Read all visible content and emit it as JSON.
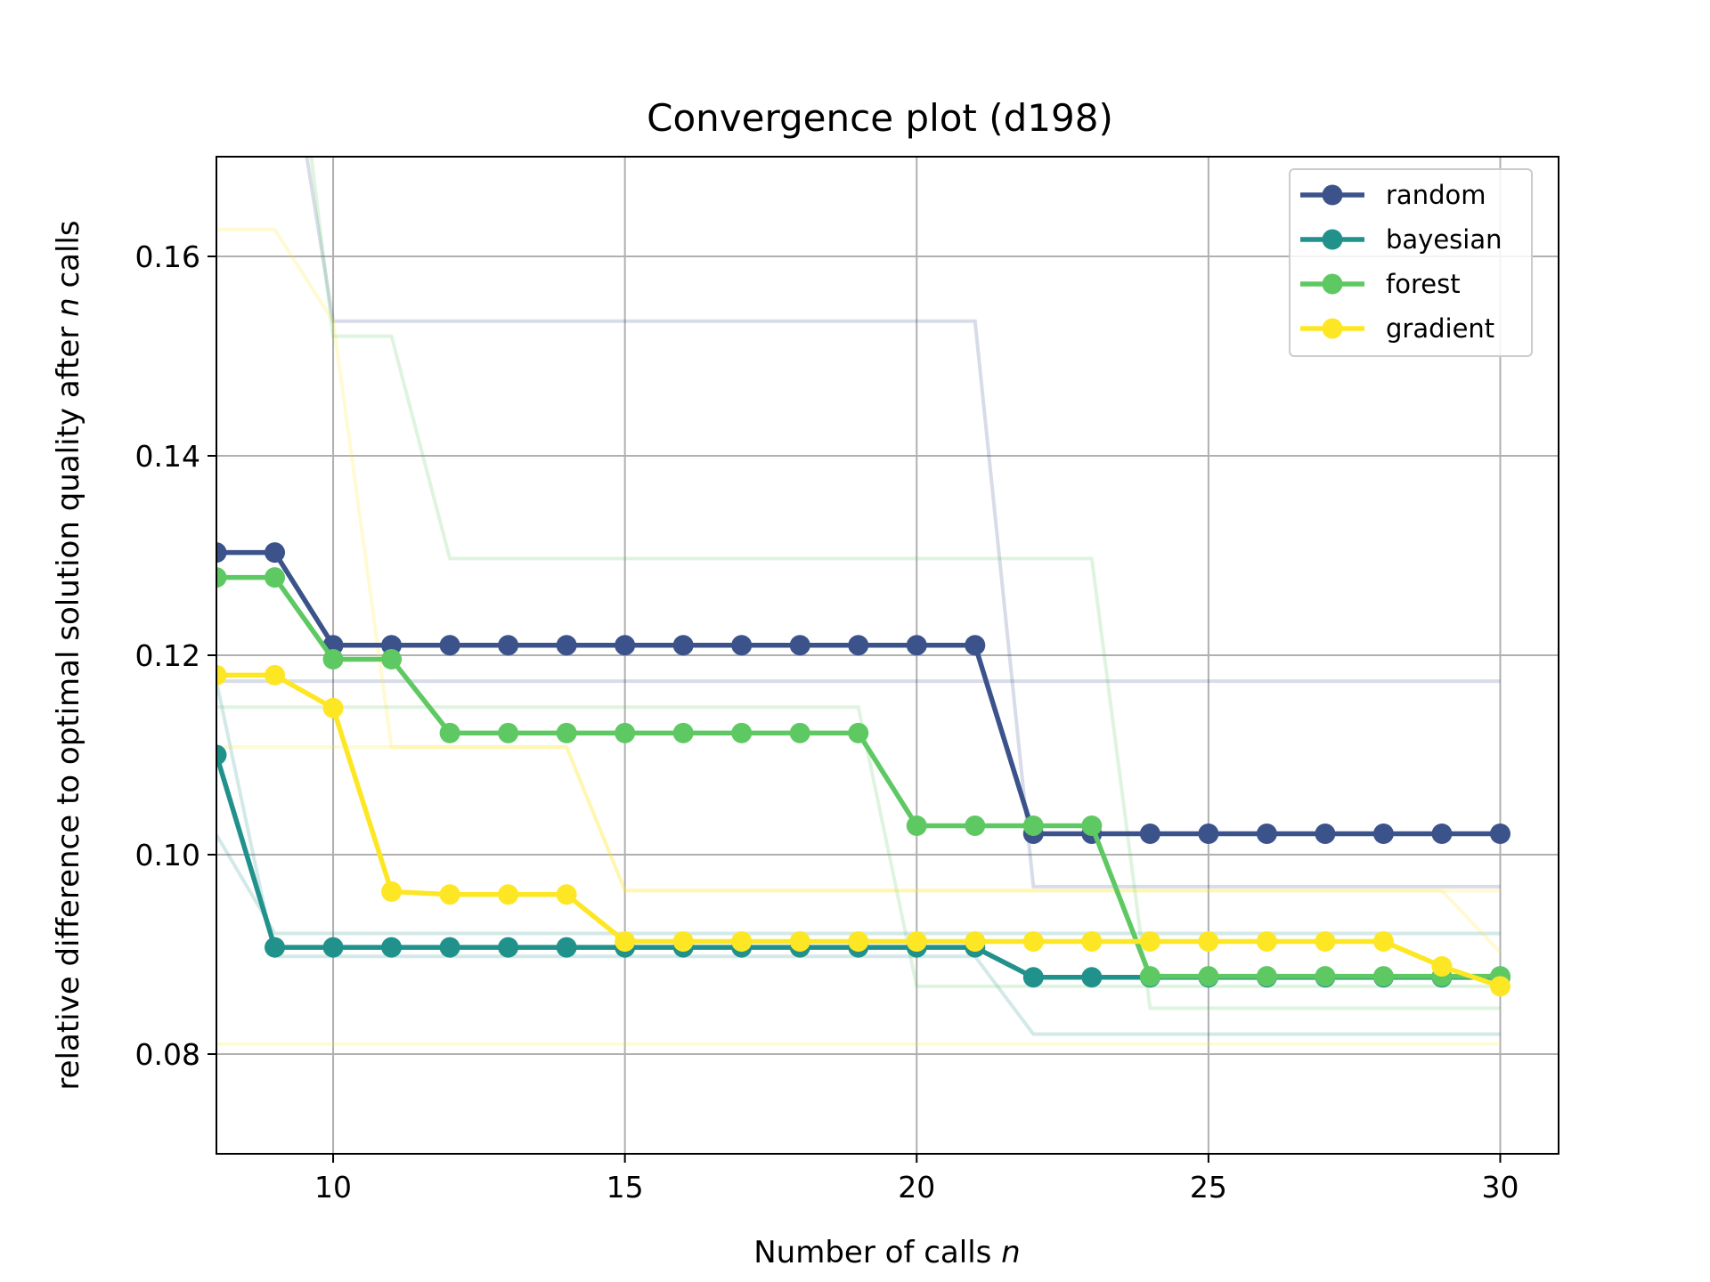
{
  "chart_data": {
    "type": "line",
    "title": "Convergence plot (d198)",
    "xlabel": "Number of calls",
    "xlabel_var": "n",
    "ylabel_prefix": "relative difference to optimal solution quality after",
    "ylabel_var": "n",
    "ylabel_suffix": "calls",
    "xlim": [
      8,
      31
    ],
    "ylim": [
      0.07,
      0.17
    ],
    "xticks": [
      10,
      15,
      20,
      25,
      30
    ],
    "xtick_labels": [
      "10",
      "15",
      "20",
      "25",
      "30"
    ],
    "yticks": [
      0.08,
      0.1,
      0.12,
      0.14,
      0.16
    ],
    "ytick_labels": [
      "0.08",
      "0.10",
      "0.12",
      "0.14",
      "0.16"
    ],
    "grid": true,
    "legend_position": "top-right",
    "x": [
      8,
      9,
      10,
      11,
      12,
      13,
      14,
      15,
      16,
      17,
      18,
      19,
      20,
      21,
      22,
      23,
      24,
      25,
      26,
      27,
      28,
      29,
      30
    ],
    "series": [
      {
        "name": "random",
        "color": "#3b528b",
        "values": [
          0.1303,
          0.1303,
          0.121,
          0.121,
          0.121,
          0.121,
          0.121,
          0.121,
          0.121,
          0.121,
          0.121,
          0.121,
          0.121,
          0.121,
          0.1021,
          0.1021,
          0.1021,
          0.1021,
          0.1021,
          0.1021,
          0.1021,
          0.1021,
          0.1021
        ],
        "runs": [
          [
            0.19,
            0.19,
            0.1535,
            0.1535,
            0.1535,
            0.1535,
            0.1535,
            0.1535,
            0.1535,
            0.1535,
            0.1535,
            0.1535,
            0.1535,
            0.1535,
            0.0968,
            0.0968,
            0.0968,
            0.0968,
            0.0968,
            0.0968,
            0.0968,
            0.0968,
            0.0968
          ],
          [
            0.1174,
            0.1174,
            0.1174,
            0.1174,
            0.1174,
            0.1174,
            0.1174,
            0.1174,
            0.1174,
            0.1174,
            0.1174,
            0.1174,
            0.1174,
            0.1174,
            0.1174,
            0.1174,
            0.1174,
            0.1174,
            0.1174,
            0.1174,
            0.1174,
            0.1174,
            0.1174
          ]
        ]
      },
      {
        "name": "bayesian",
        "color": "#21918c",
        "values": [
          0.11,
          0.0907,
          0.0907,
          0.0907,
          0.0907,
          0.0907,
          0.0907,
          0.0907,
          0.0907,
          0.0907,
          0.0907,
          0.0907,
          0.0907,
          0.0907,
          0.0877,
          0.0877,
          0.0877,
          0.0877,
          0.0877,
          0.0877,
          0.0877,
          0.0877,
          0.0877
        ],
        "runs": [
          [
            0.102,
            0.0921,
            0.0921,
            0.0921,
            0.0921,
            0.0921,
            0.0921,
            0.0921,
            0.0921,
            0.0921,
            0.0921,
            0.0921,
            0.0921,
            0.0921,
            0.0921,
            0.0921,
            0.0921,
            0.0921,
            0.0921,
            0.0921,
            0.0921,
            0.0921,
            0.0921
          ],
          [
            0.1174,
            0.0898,
            0.0898,
            0.0898,
            0.0898,
            0.0898,
            0.0898,
            0.0898,
            0.0898,
            0.0898,
            0.0898,
            0.0898,
            0.0898,
            0.0898,
            0.082,
            0.082,
            0.082,
            0.082,
            0.082,
            0.082,
            0.082,
            0.082,
            0.082
          ]
        ]
      },
      {
        "name": "forest",
        "color": "#5ec962",
        "values": [
          0.1278,
          0.1278,
          0.1196,
          0.1196,
          0.1122,
          0.1122,
          0.1122,
          0.1122,
          0.1122,
          0.1122,
          0.1122,
          0.1122,
          0.1029,
          0.1029,
          0.1029,
          0.1029,
          0.0878,
          0.0878,
          0.0878,
          0.0878,
          0.0878,
          0.0878,
          0.0878
        ],
        "runs": [
          [
            0.2,
            0.2,
            0.152,
            0.152,
            0.1297,
            0.1297,
            0.1297,
            0.1297,
            0.1297,
            0.1297,
            0.1297,
            0.1297,
            0.1297,
            0.1297,
            0.1297,
            0.1297,
            0.0846,
            0.0846,
            0.0846,
            0.0846,
            0.0846,
            0.0846,
            0.0846
          ],
          [
            0.1148,
            0.1148,
            0.1148,
            0.1148,
            0.1148,
            0.1148,
            0.1148,
            0.1148,
            0.1148,
            0.1148,
            0.1148,
            0.1148,
            0.0868,
            0.0868,
            0.0868,
            0.0868,
            0.0868,
            0.0868,
            0.0868,
            0.0868,
            0.0868,
            0.0868,
            0.0868
          ]
        ]
      },
      {
        "name": "gradient",
        "color": "#fde725",
        "values": [
          0.118,
          0.118,
          0.1147,
          0.0963,
          0.096,
          0.096,
          0.096,
          0.0913,
          0.0913,
          0.0913,
          0.0913,
          0.0913,
          0.0913,
          0.0913,
          0.0913,
          0.0913,
          0.0913,
          0.0913,
          0.0913,
          0.0913,
          0.0913,
          0.0888,
          0.0868
        ],
        "runs": [
          [
            0.1627,
            0.1627,
            0.1535,
            0.1108,
            0.1108,
            0.1108,
            0.1108,
            0.0964,
            0.0964,
            0.0964,
            0.0964,
            0.0964,
            0.0964,
            0.0964,
            0.0964,
            0.0964,
            0.0964,
            0.0964,
            0.0964,
            0.0964,
            0.0964,
            0.0964,
            0.0902
          ],
          [
            0.1108,
            0.1108,
            0.1108,
            0.1108,
            0.1108,
            0.1108,
            0.1108,
            0.0964,
            0.0964,
            0.0964,
            0.0964,
            0.0964,
            0.0964,
            0.0964,
            0.0964,
            0.0964,
            0.0964,
            0.0964,
            0.0964,
            0.0964,
            0.0964,
            0.0964,
            0.0964
          ],
          [
            0.081,
            0.081,
            0.081,
            0.081,
            0.081,
            0.081,
            0.081,
            0.081,
            0.081,
            0.081,
            0.081,
            0.081,
            0.081,
            0.081,
            0.081,
            0.081,
            0.081,
            0.081,
            0.081,
            0.081,
            0.081,
            0.081,
            0.081
          ]
        ]
      }
    ]
  }
}
